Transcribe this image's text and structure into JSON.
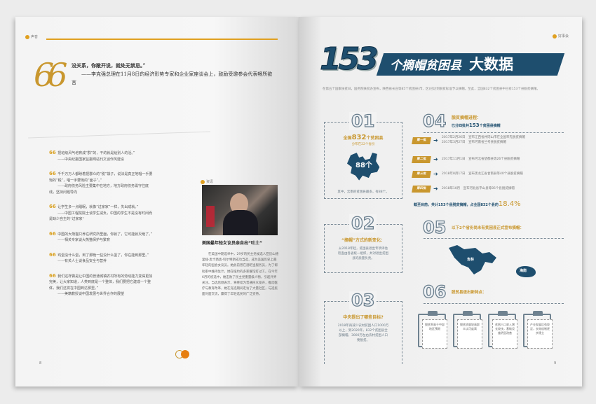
{
  "left_page": {
    "section_tag": "声音",
    "lead_quote": {
      "text": "没关系，你敞开说，就处无禁忌。”",
      "attribution": "——李克强总理在11月8日的经济形势专家和企业家座谈会上，鼓励受邀参会代表畅所欲言"
    },
    "quotes": [
      {
        "text": "把班级风气培育成“群”的，干的就是给别人的活。”",
        "attribution": "——中央纪委国家监委网站刊文谈作风建设"
      },
      {
        "text": "千千万万人都盼着把群众的“税”袋子，说法是真正地唱一手要饱的“税”，唱一手要饱的“面子”。”",
        "attribution": "——政府债务风险主要集中在地方，地方政府债务需守住底线，坚持问题导向"
      },
      {
        "text": "让学生多一点睡眠，就像“过家家”一样，失出成就。”",
        "attribution": "——中国工程院院士谈学生减负，中国的学生不是没有时间而是缺少自主的“过家家”"
      },
      {
        "text": "中国的大熊猫只养在研究所里面，你就了，它可能就灭绝了。”",
        "attribution": "——相关专家谈大熊猫保护与繁育"
      },
      {
        "text": "鸡蛋没什么蛋，到了那晚一些没什么蛋了，你在能到那里。”",
        "attribution": "——有关人士谈食品安全与营养"
      },
      {
        "text": "我们这样做是让中国的普通城镇农村所有的劳动能力变得更加完美，让大家知道，人类到底是一个整体，我们要把它建成一个整体，我们还将在中国到达那里。”",
        "attribution": "——美籍教授谈中国发展与世界合作的展望"
      }
    ],
    "news": {
      "tag": "资讯",
      "headline": "美国最年轻女议员亲自出“吐土”",
      "body": "在美国中期选举中，29岁的民主党候选人亚历山德里娅·奥卡西奥-科尔特斯成功当选，成为美国历史上最年轻的国会女议员。她此前曾在酒吧当服务员，为了帮助家中维持生计，她在纽约的多家餐馆打过工。在今年6月的初选中，她击败了民主党重量级人物，引起外界关注。当选后她表示，将继续为普通民众发声，推动医疗与教育改革，她在竞选期间走访了大量社区，与选民面对面交流，赢得了年轻选民的广泛支持。"
    },
    "page_number": "8"
  },
  "right_page": {
    "section_tag": "好事会",
    "title": {
      "number": "153",
      "text1": "个摘帽贫困县",
      "text2": "大数据"
    },
    "intro": "在第五个国家扶贫日，国务院扶贫办宣布，陕西省长庄等85个贫困县(市、区)已达到脱贫标准予以摘帽。至此，全国832个贫困县中已有153个县脱贫摘帽。",
    "s01": {
      "num": "01",
      "line1_pre": "全国",
      "line1_num": "832",
      "line1_post": "个贫困县",
      "line2": "分布在22个省份",
      "map_label": "88个",
      "foot": "其中，云南的贫困县最多，有88个。"
    },
    "s02": {
      "num": "02",
      "heading": "“摘帽”方式的新变化：",
      "body": "从2018年起，贫困县退出专项评估检查由各省统一组织，并对退出贫困县的质量负责。"
    },
    "s03": {
      "num": "03",
      "heading": "中央提出了哪些目标?",
      "body": "2018年再减少农村贫困人口1000万以上，到2020年，832个贫困县全部摘帽，3000万左右农村贫困人口要脱贫。"
    },
    "s04": {
      "num": "04",
      "heading": "脱贫摘帽进程：",
      "sub_pre": "已分四批共",
      "sub_num": "153",
      "sub_post": "个贫困县摘帽",
      "steps": [
        {
          "label": "第一批",
          "lines": [
            "2017年2月26日　宣布江西省井冈山市在全国率先脱贫摘帽",
            "2017年3月27日　宣布河南省兰考县脱贫摘帽"
          ]
        },
        {
          "label": "第二批",
          "lines": [
            "2017年11月1日　宣布河北省望都县等26个县脱贫摘帽"
          ]
        },
        {
          "label": "第三批",
          "lines": [
            "2018年8月17日　宣布黑龙江省甘南县等40个县脱贫摘帽"
          ]
        },
        {
          "label": "第四批",
          "lines": [
            "2018年10月　宣布河北省平山县等85个县脱贫摘帽"
          ]
        }
      ],
      "summary_pre": "截至目前，共计153个县脱贫摘帽，占全国832个县的",
      "summary_pct": "18.4%"
    },
    "s05": {
      "num": "05",
      "heading": "以下2个省份尚未有贫困县正式宣布摘帽：",
      "provinces": [
        "吉林",
        "海南"
      ]
    },
    "s06": {
      "num": "06",
      "heading": "脱贫县退出新特点：",
      "cards": [
        "脱贫率高于中部地区预期",
        "脱贫质量较高群众认可度高",
        "贫困人口收入增长较快，基础设施明显改善",
        "产业发展后劲较足，长效机制逐步建立"
      ]
    },
    "page_number": "9"
  },
  "colors": {
    "navy": "#1e4e6e",
    "gold": "#c9972e",
    "orange": "#e0a020"
  }
}
